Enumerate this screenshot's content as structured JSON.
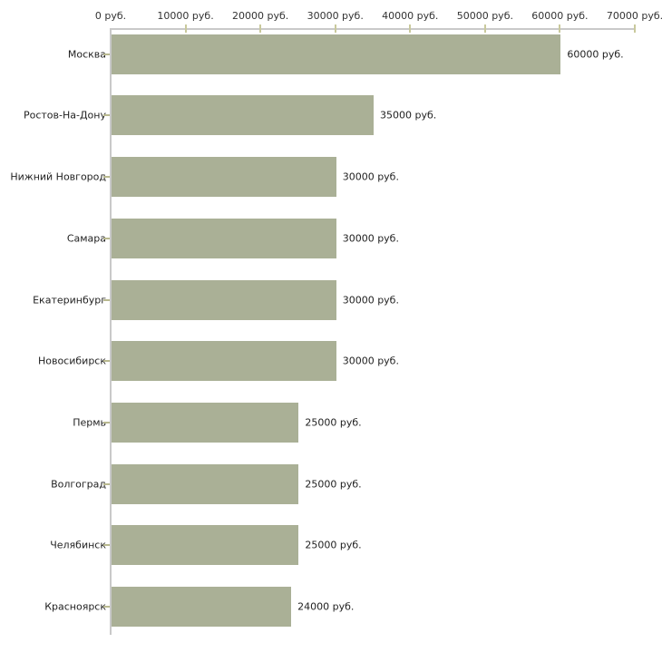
{
  "chart_data": {
    "type": "bar",
    "orientation": "horizontal",
    "title": "",
    "xlabel": "",
    "ylabel": "",
    "legend": false,
    "grid": false,
    "categories": [
      "Москва",
      "Ростов-На-Дону",
      "Нижний Новгород",
      "Самара",
      "Екатеринбург",
      "Новосибирск",
      "Пермь",
      "Волгоград",
      "Челябинск",
      "Красноярск"
    ],
    "values": [
      60000,
      35000,
      30000,
      30000,
      30000,
      30000,
      25000,
      25000,
      25000,
      24000
    ],
    "value_labels": [
      "60000 руб.",
      "35000 руб.",
      "30000 руб.",
      "30000 руб.",
      "30000 руб.",
      "30000 руб.",
      "25000 руб.",
      "25000 руб.",
      "25000 руб.",
      "24000 руб."
    ],
    "x_axis": {
      "position": "top",
      "range": [
        0,
        70000
      ],
      "ticks": [
        0,
        10000,
        20000,
        30000,
        40000,
        50000,
        60000,
        70000
      ],
      "tick_labels": [
        "0 руб.",
        "10000 руб.",
        "20000 руб.",
        "30000 руб.",
        "40000 руб.",
        "50000 руб.",
        "60000 руб.",
        "70000 руб."
      ]
    },
    "colors": {
      "bar": "#aab096",
      "axis_line": "#c9c9c9",
      "x_tick_mark": "#c9c99c",
      "category_tick_mark": "#b9b98f",
      "text": "#222222",
      "background": "#ffffff"
    }
  }
}
